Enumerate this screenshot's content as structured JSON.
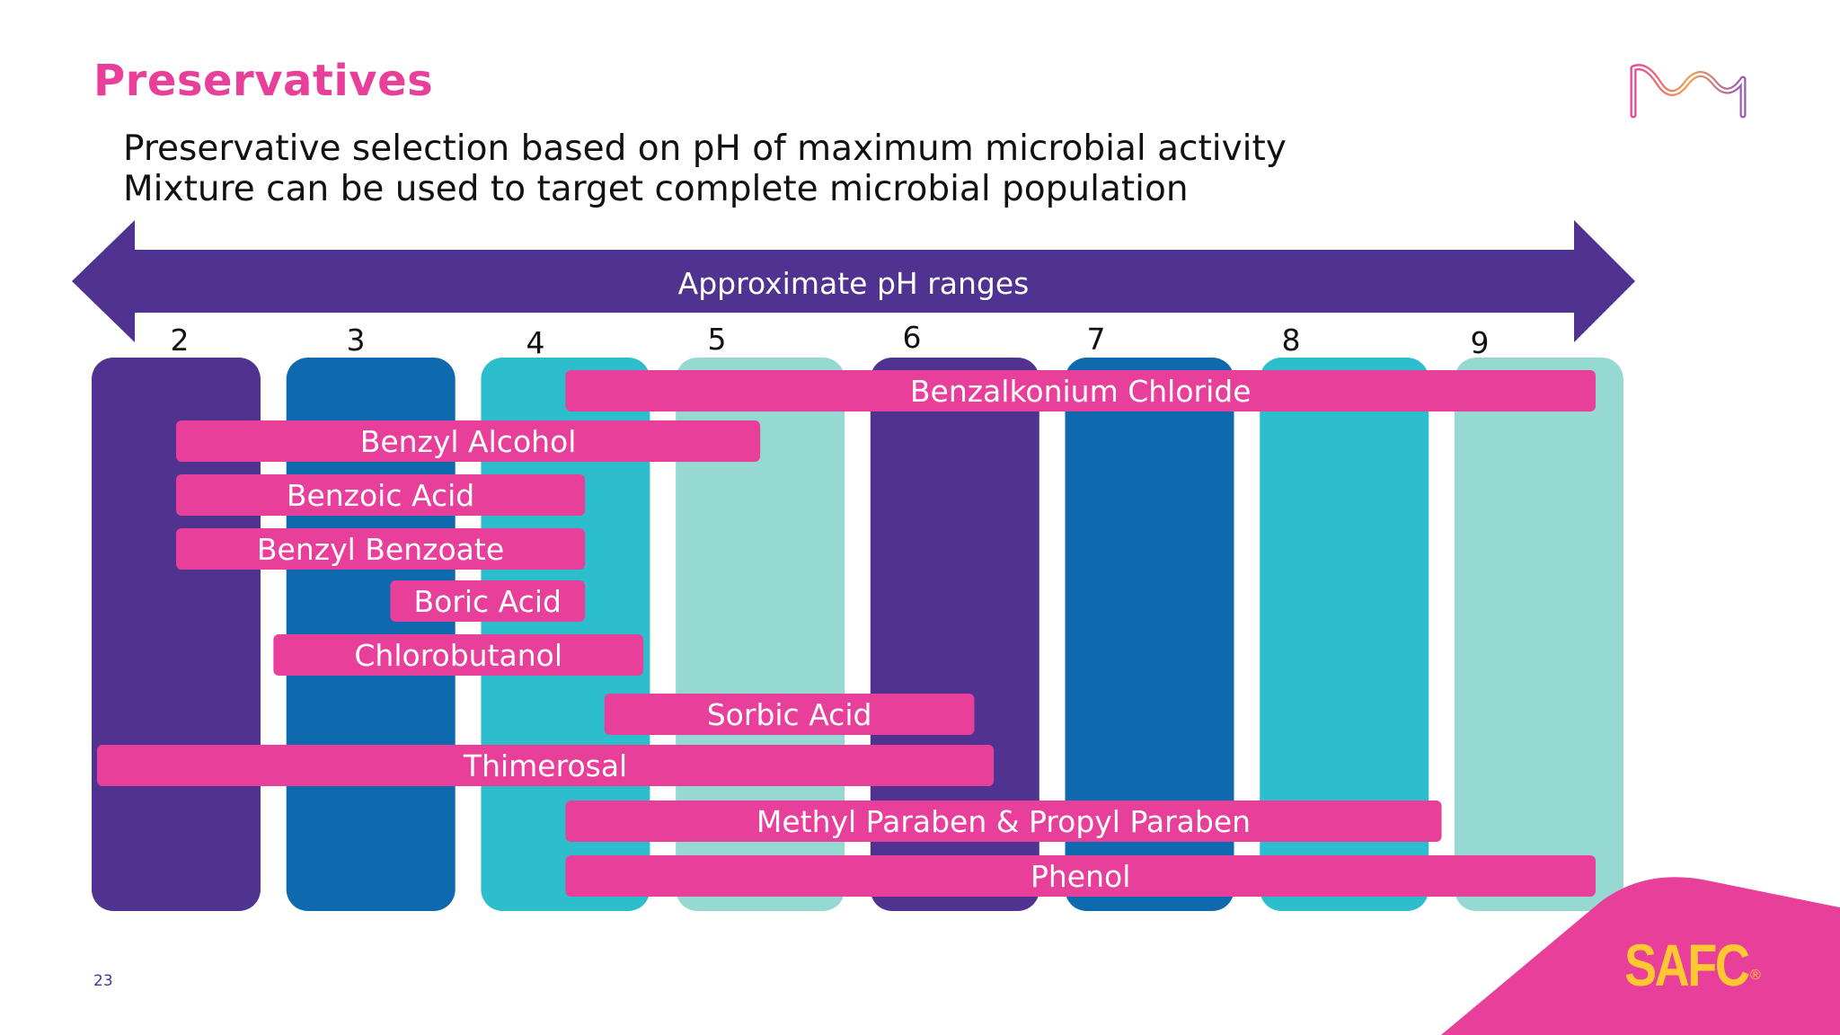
{
  "slide": {
    "title": "Preservatives",
    "subtitle_lines": [
      "Preservative selection based on pH of maximum microbial activity",
      "Mixture can be used to target complete microbial population"
    ],
    "page_number": "23",
    "brand_logo": "SAFC",
    "brand_mark": "®",
    "logo_icon": "merck-m-logo-icon"
  },
  "colors": {
    "accent_pink": "#e8409a",
    "arrow_purple": "#503291",
    "column_colors": [
      "#503291",
      "#0f69af",
      "#2dbecd",
      "#96d9d2",
      "#503291",
      "#0f69af",
      "#2dbecd",
      "#96d9d2"
    ],
    "bar_color": "#e8409a",
    "brand_yellow": "#ffc832"
  },
  "chart_data": {
    "type": "range-bar",
    "arrow_label": "Approximate pH ranges",
    "ph_ticks": [
      "2",
      "3",
      "4",
      "5",
      "6",
      "7",
      "8",
      "9"
    ],
    "ranges": [
      {
        "name": "Benzalkonium Chloride",
        "start": 4.0,
        "end": 9.6
      },
      {
        "name": "Benzyl Alcohol",
        "start": 2.0,
        "end": 5.0
      },
      {
        "name": "Benzoic Acid",
        "start": 2.0,
        "end": 4.1
      },
      {
        "name": "Benzyl Benzoate",
        "start": 2.0,
        "end": 4.1
      },
      {
        "name": "Boric Acid",
        "start": 3.1,
        "end": 4.1
      },
      {
        "name": "Chlorobutanol",
        "start": 2.5,
        "end": 4.4
      },
      {
        "name": "Sorbic Acid",
        "start": 4.2,
        "end": 6.1
      },
      {
        "name": "Thimerosal",
        "start": 1.5,
        "end": 6.2
      },
      {
        "name": "Methyl Paraben & Propyl Paraben",
        "start": 4.0,
        "end": 8.5
      },
      {
        "name": "Phenol",
        "start": 4.0,
        "end": 9.6
      }
    ]
  }
}
